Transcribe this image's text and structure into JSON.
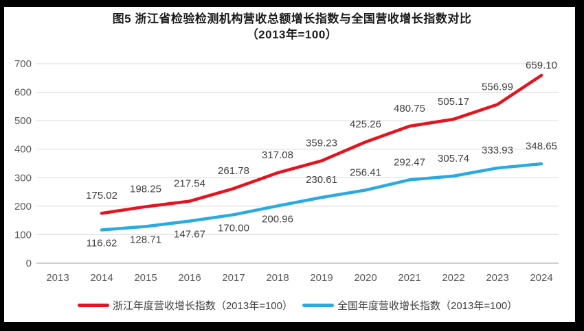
{
  "title": {
    "line1": "图5  浙江省检验检测机构营收总额增长指数与全国营收增长指数对比",
    "line2": "（2013年=100）"
  },
  "chart_data": {
    "type": "line",
    "categories": [
      "2013",
      "2014",
      "2015",
      "2016",
      "2017",
      "2018",
      "2019",
      "2020",
      "2021",
      "2022",
      "2023",
      "2024"
    ],
    "series": [
      {
        "name": "浙江年度营收增长指数（2013年=100）",
        "color": "#e8121e",
        "start_category_index": 1,
        "values": [
          "175.02",
          "198.25",
          "217.54",
          "261.78",
          "317.08",
          "359.23",
          "425.26",
          "480.75",
          "505.17",
          "556.99",
          "659.10"
        ],
        "label_dy": [
          -21,
          -21,
          -21,
          -21,
          -21,
          -21,
          -21,
          -21,
          -21,
          -21,
          -10
        ]
      },
      {
        "name": "全国年度营收增长指数（2013年=100）",
        "color": "#29abe2",
        "start_category_index": 1,
        "values": [
          "116.62",
          "128.71",
          "147.67",
          "170.00",
          "200.96",
          "230.61",
          "256.41",
          "292.47",
          "305.74",
          "333.93",
          "348.65"
        ],
        "label_dy": [
          24,
          24,
          24,
          24,
          24,
          -21,
          -21,
          -21,
          -21,
          -21,
          -21
        ]
      }
    ],
    "ylim": [
      0,
      700
    ],
    "ytick_step": 100,
    "xlabel": "",
    "ylabel": "",
    "grid": "horizontal",
    "legend_position": "bottom",
    "colors": {
      "gridline": "#d9d9d9",
      "axis_line": "#c0c0c0",
      "tick_label": "#595959",
      "data_label": "#404040"
    }
  }
}
